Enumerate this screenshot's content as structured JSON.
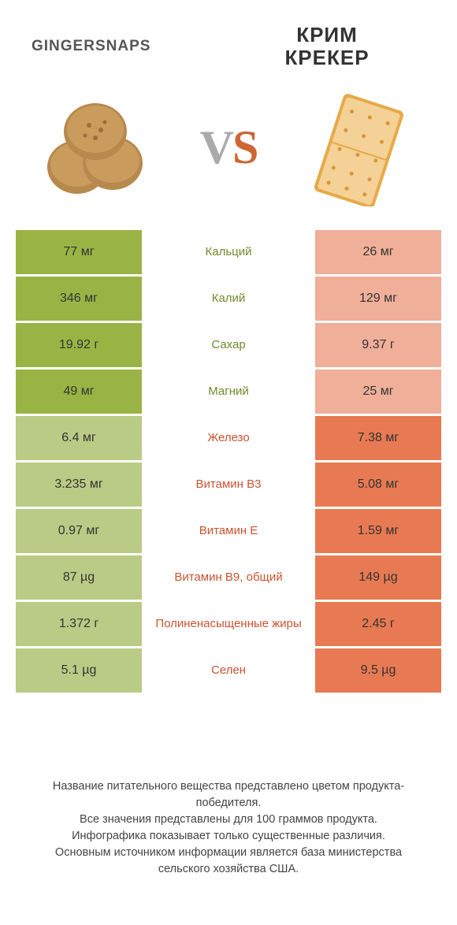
{
  "left_title": "GINGERSNAPS",
  "right_title": "КРИМ\nКРЕКЕР",
  "vs": "VS",
  "colors": {
    "green": "#99b444",
    "orange": "#e77a52",
    "green_dim": "#b9cb85",
    "orange_dim": "#efaf99",
    "label_green": "#6f8a2a",
    "label_orange": "#c9532f"
  },
  "rows": [
    {
      "label": "Кальций",
      "left": "77 мг",
      "right": "26 мг",
      "winner": "left"
    },
    {
      "label": "Калий",
      "left": "346 мг",
      "right": "129 мг",
      "winner": "left"
    },
    {
      "label": "Сахар",
      "left": "19.92 г",
      "right": "9.37 г",
      "winner": "left"
    },
    {
      "label": "Магний",
      "left": "49 мг",
      "right": "25 мг",
      "winner": "left"
    },
    {
      "label": "Железо",
      "left": "6.4 мг",
      "right": "7.38 мг",
      "winner": "right"
    },
    {
      "label": "Витамин B3",
      "left": "3.235 мг",
      "right": "5.08 мг",
      "winner": "right"
    },
    {
      "label": "Витамин E",
      "left": "0.97 мг",
      "right": "1.59 мг",
      "winner": "right"
    },
    {
      "label": "Витамин B9, общий",
      "left": "87 µg",
      "right": "149 µg",
      "winner": "right"
    },
    {
      "label": "Полиненасыщенные жиры",
      "left": "1.372 г",
      "right": "2.45 г",
      "winner": "right"
    },
    {
      "label": "Селен",
      "left": "5.1 µg",
      "right": "9.5 µg",
      "winner": "right"
    }
  ],
  "footer": [
    "Название питательного вещества представлено цветом продукта-победителя.",
    "Все значения представлены для 100 граммов продукта.",
    "Инфографика показывает только существенные различия.",
    "Основным источником информации является база министерства сельского хозяйства США."
  ]
}
